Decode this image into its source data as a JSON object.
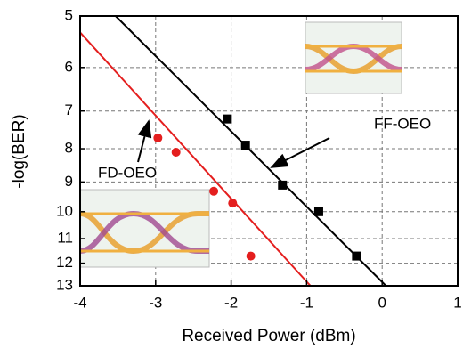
{
  "chart_data": {
    "type": "scatter",
    "xlabel": "Received Power (dBm)",
    "ylabel": "-log(BER)",
    "xlim": [
      -4,
      1
    ],
    "xticks": [
      -4,
      -3,
      -2,
      -1,
      0,
      1
    ],
    "ylim": [
      5,
      13
    ],
    "yticks": [
      5,
      6,
      7,
      8,
      9,
      10,
      11,
      12,
      13
    ],
    "yscale": "log",
    "yinvert": true,
    "grid": true,
    "series": [
      {
        "color": "#e41e1e",
        "x": [
          -2.97,
          -2.73,
          -2.23,
          -1.98,
          -1.74
        ],
        "values": [
          7.7,
          8.1,
          9.3,
          9.7,
          11.7
        ],
        "fit": {
          "x": [
            -4,
            -0.95
          ],
          "values": [
            5.3,
            13
          ]
        }
      },
      {
        "color": "#000000",
        "x": [
          -2.05,
          -1.81,
          -1.32,
          -0.84,
          -0.34
        ],
        "values": [
          7.2,
          7.9,
          9.1,
          10.0,
          11.7
        ],
        "fit": {
          "x": [
            -3.53,
            0.05
          ],
          "values": [
            5,
            13
          ]
        }
      }
    ],
    "annotations": [
      "FF-OEO",
      "FD-OEO"
    ]
  }
}
